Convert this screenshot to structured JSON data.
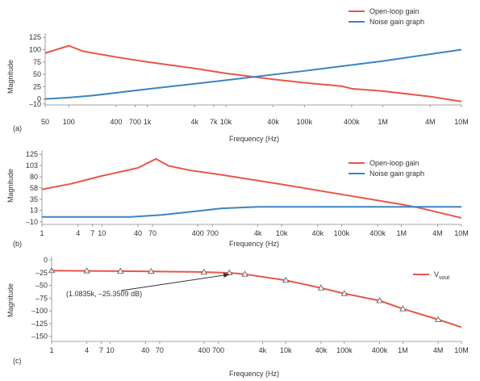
{
  "colors": {
    "red": "#e8564a",
    "blue": "#3b84c4",
    "axis": "#888888",
    "text": "#333333"
  },
  "chart_data": [
    {
      "panel_label": "(a)",
      "type": "line",
      "xscale": "log",
      "xlabel": "Frequency (Hz)",
      "ylabel": "Magnitude",
      "xlim": [
        50,
        10000000
      ],
      "ylim": [
        -12,
        127
      ],
      "grid": false,
      "legend_position": "top-right",
      "x_ticks": [
        {
          "v": 50,
          "t": "50"
        },
        {
          "v": 100,
          "t": "100"
        },
        {
          "v": 400,
          "t": "400"
        },
        {
          "v": 700,
          "t": "700"
        },
        {
          "v": 1000,
          "t": "1k"
        },
        {
          "v": 4000,
          "t": "4k"
        },
        {
          "v": 7000,
          "t": "7k"
        },
        {
          "v": 10000,
          "t": "10k"
        },
        {
          "v": 40000,
          "t": "40k"
        },
        {
          "v": 100000,
          "t": "100k"
        },
        {
          "v": 400000,
          "t": "400k"
        },
        {
          "v": 1000000,
          "t": "1M"
        },
        {
          "v": 4000000,
          "t": "4M"
        },
        {
          "v": 10000000,
          "t": "10M"
        }
      ],
      "y_ticks": [
        {
          "v": 125,
          "t": "125"
        },
        {
          "v": 100,
          "t": "100"
        },
        {
          "v": 75,
          "t": "75"
        },
        {
          "v": 50,
          "t": "50"
        },
        {
          "v": 25,
          "t": "25"
        },
        {
          "v": 0,
          "t": "0"
        },
        {
          "v": -10,
          "t": "–10"
        }
      ],
      "series": [
        {
          "name": "Open-loop gain",
          "color": "red",
          "x": [
            50,
            100,
            150,
            400,
            1000,
            4000,
            10000,
            40000,
            100000,
            300000,
            400000,
            1000000,
            4000000,
            10000000
          ],
          "y": [
            93,
            108,
            97,
            85,
            75,
            62,
            52,
            40,
            33,
            26,
            21,
            16,
            5,
            -5
          ]
        },
        {
          "name": "Noise gain graph",
          "color": "blue",
          "x": [
            50,
            100,
            200,
            1000,
            10000,
            100000,
            1000000,
            10000000
          ],
          "y": [
            0,
            3,
            7,
            20,
            38,
            57,
            77,
            100
          ]
        }
      ]
    },
    {
      "panel_label": "(b)",
      "type": "line",
      "xscale": "log",
      "xlabel": "Frequency (Hz)",
      "ylabel": "Magnitude",
      "xlim": [
        1,
        10000000
      ],
      "ylim": [
        -15,
        127
      ],
      "grid": false,
      "legend_position": "top-right",
      "x_ticks": [
        {
          "v": 1,
          "t": "1"
        },
        {
          "v": 4,
          "t": "4"
        },
        {
          "v": 7,
          "t": "7"
        },
        {
          "v": 10,
          "t": "10"
        },
        {
          "v": 40,
          "t": "40"
        },
        {
          "v": 70,
          "t": "70"
        },
        {
          "v": 400,
          "t": "400"
        },
        {
          "v": 700,
          "t": "700"
        },
        {
          "v": 4000,
          "t": "4k"
        },
        {
          "v": 10000,
          "t": "10k"
        },
        {
          "v": 40000,
          "t": "40k"
        },
        {
          "v": 100000,
          "t": "100k"
        },
        {
          "v": 400000,
          "t": "400k"
        },
        {
          "v": 1000000,
          "t": "1M"
        },
        {
          "v": 4000000,
          "t": "4M"
        },
        {
          "v": 10000000,
          "t": "10M"
        }
      ],
      "y_ticks": [
        {
          "v": 125,
          "t": "125"
        },
        {
          "v": 103,
          "t": "103"
        },
        {
          "v": 80,
          "t": "80"
        },
        {
          "v": 58,
          "t": "58"
        },
        {
          "v": 35,
          "t": "35"
        },
        {
          "v": 13,
          "t": "13"
        },
        {
          "v": -10,
          "t": "–10"
        }
      ],
      "series": [
        {
          "name": "Open-loop gain",
          "color": "red",
          "x": [
            1,
            3,
            10,
            40,
            80,
            130,
            300,
            1000,
            10000,
            100000,
            1000000,
            2000000,
            10000000
          ],
          "y": [
            55,
            66,
            82,
            98,
            116,
            102,
            93,
            84,
            65,
            45,
            25,
            18,
            -2
          ]
        },
        {
          "name": "Noise gain graph",
          "color": "blue",
          "x": [
            1,
            10,
            30,
            100,
            1000,
            4000,
            10000000
          ],
          "y": [
            0,
            0,
            0,
            4,
            17,
            20,
            20
          ]
        }
      ]
    },
    {
      "panel_label": "(c)",
      "type": "line",
      "xscale": "log",
      "xlabel": "Frequency (Hz)",
      "ylabel": "Magnitude",
      "xlim": [
        1,
        10000000
      ],
      "ylim": [
        -160,
        0
      ],
      "grid": false,
      "legend_position": "top-right",
      "x_ticks": [
        {
          "v": 1,
          "t": "1"
        },
        {
          "v": 4,
          "t": "4"
        },
        {
          "v": 7,
          "t": "7"
        },
        {
          "v": 10,
          "t": "10"
        },
        {
          "v": 40,
          "t": "40"
        },
        {
          "v": 70,
          "t": "70"
        },
        {
          "v": 400,
          "t": "400"
        },
        {
          "v": 700,
          "t": "700"
        },
        {
          "v": 4000,
          "t": "4k"
        },
        {
          "v": 10000,
          "t": "10k"
        },
        {
          "v": 40000,
          "t": "40k"
        },
        {
          "v": 100000,
          "t": "100k"
        },
        {
          "v": 400000,
          "t": "400k"
        },
        {
          "v": 1000000,
          "t": "1M"
        },
        {
          "v": 4000000,
          "t": "4M"
        },
        {
          "v": 10000000,
          "t": "10M"
        }
      ],
      "y_ticks": [
        {
          "v": 0,
          "t": "0"
        },
        {
          "v": -25,
          "t": "–25"
        },
        {
          "v": -50,
          "t": "–50"
        },
        {
          "v": -75,
          "t": "–75"
        },
        {
          "v": -100,
          "t": "–100"
        },
        {
          "v": -125,
          "t": "–125"
        },
        {
          "v": -150,
          "t": "–150"
        }
      ],
      "series": [
        {
          "name": "V",
          "name_sub": "vout",
          "color": "red",
          "x": [
            1,
            4,
            15,
            50,
            300,
            1083.5,
            2000,
            10000,
            40000,
            100000,
            400000,
            1000000,
            4000000,
            10000000
          ],
          "y": [
            -21,
            -21.5,
            -22,
            -22.5,
            -23.5,
            -25.35,
            -28,
            -40,
            -55,
            -66,
            -80,
            -96,
            -117,
            -132
          ]
        }
      ],
      "markers": {
        "x": [
          1,
          4,
          15,
          50,
          400,
          1083.5,
          2000,
          10000,
          40000,
          100000,
          400000,
          1000000,
          4000000
        ],
        "y": [
          -21,
          -21.5,
          -22,
          -22.5,
          -24,
          -25.35,
          -28,
          -40,
          -55,
          -66,
          -80,
          -96,
          -117
        ]
      },
      "annotation": {
        "text": "(1.0835k, –25.3509 dB)",
        "x": 1083.5,
        "y": -25.3509
      }
    }
  ]
}
